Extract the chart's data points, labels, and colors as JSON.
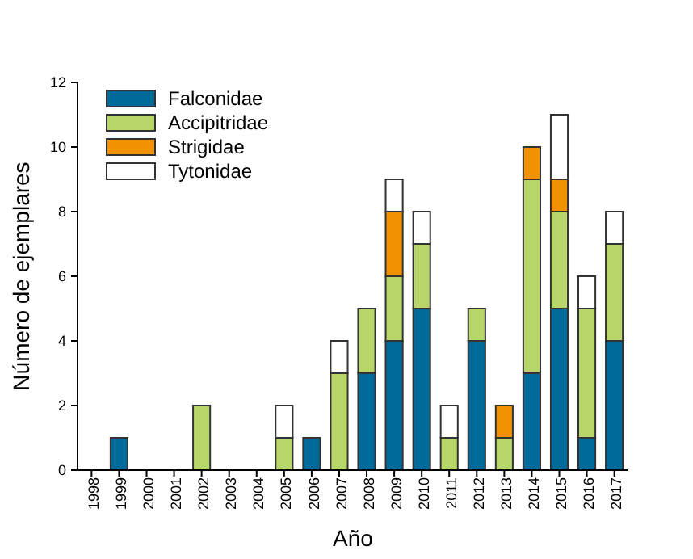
{
  "chart_data": {
    "type": "bar",
    "stacked": true,
    "xlabel": "Año",
    "ylabel": "Número de ejemplares",
    "categories": [
      "1998",
      "1999",
      "2000",
      "2001",
      "2002",
      "2003",
      "2004",
      "2005",
      "2006",
      "2007",
      "2008",
      "2009",
      "2010",
      "2011",
      "2012",
      "2013",
      "2014",
      "2015",
      "2016",
      "2017"
    ],
    "series": [
      {
        "name": "Falconidae",
        "color": "#006b9a",
        "values": [
          0,
          1,
          0,
          0,
          0,
          0,
          0,
          0,
          1,
          0,
          3,
          4,
          5,
          0,
          4,
          0,
          3,
          5,
          1,
          4
        ]
      },
      {
        "name": "Accipitridae",
        "color": "#b8d56a",
        "values": [
          0,
          0,
          0,
          0,
          2,
          0,
          0,
          1,
          0,
          3,
          2,
          2,
          2,
          1,
          1,
          1,
          6,
          3,
          4,
          3
        ]
      },
      {
        "name": "Strigidae",
        "color": "#f39200",
        "values": [
          0,
          0,
          0,
          0,
          0,
          0,
          0,
          0,
          0,
          0,
          0,
          2,
          0,
          0,
          0,
          1,
          1,
          1,
          0,
          0
        ]
      },
      {
        "name": "Tytonidae",
        "color": "#ffffff",
        "values": [
          0,
          0,
          0,
          0,
          0,
          0,
          0,
          1,
          0,
          1,
          0,
          1,
          1,
          1,
          0,
          0,
          0,
          2,
          1,
          1
        ]
      }
    ],
    "ylim": [
      0,
      12
    ],
    "yticks": [
      0,
      2,
      4,
      6,
      8,
      10,
      12
    ],
    "grid": false,
    "legend": "top left"
  }
}
